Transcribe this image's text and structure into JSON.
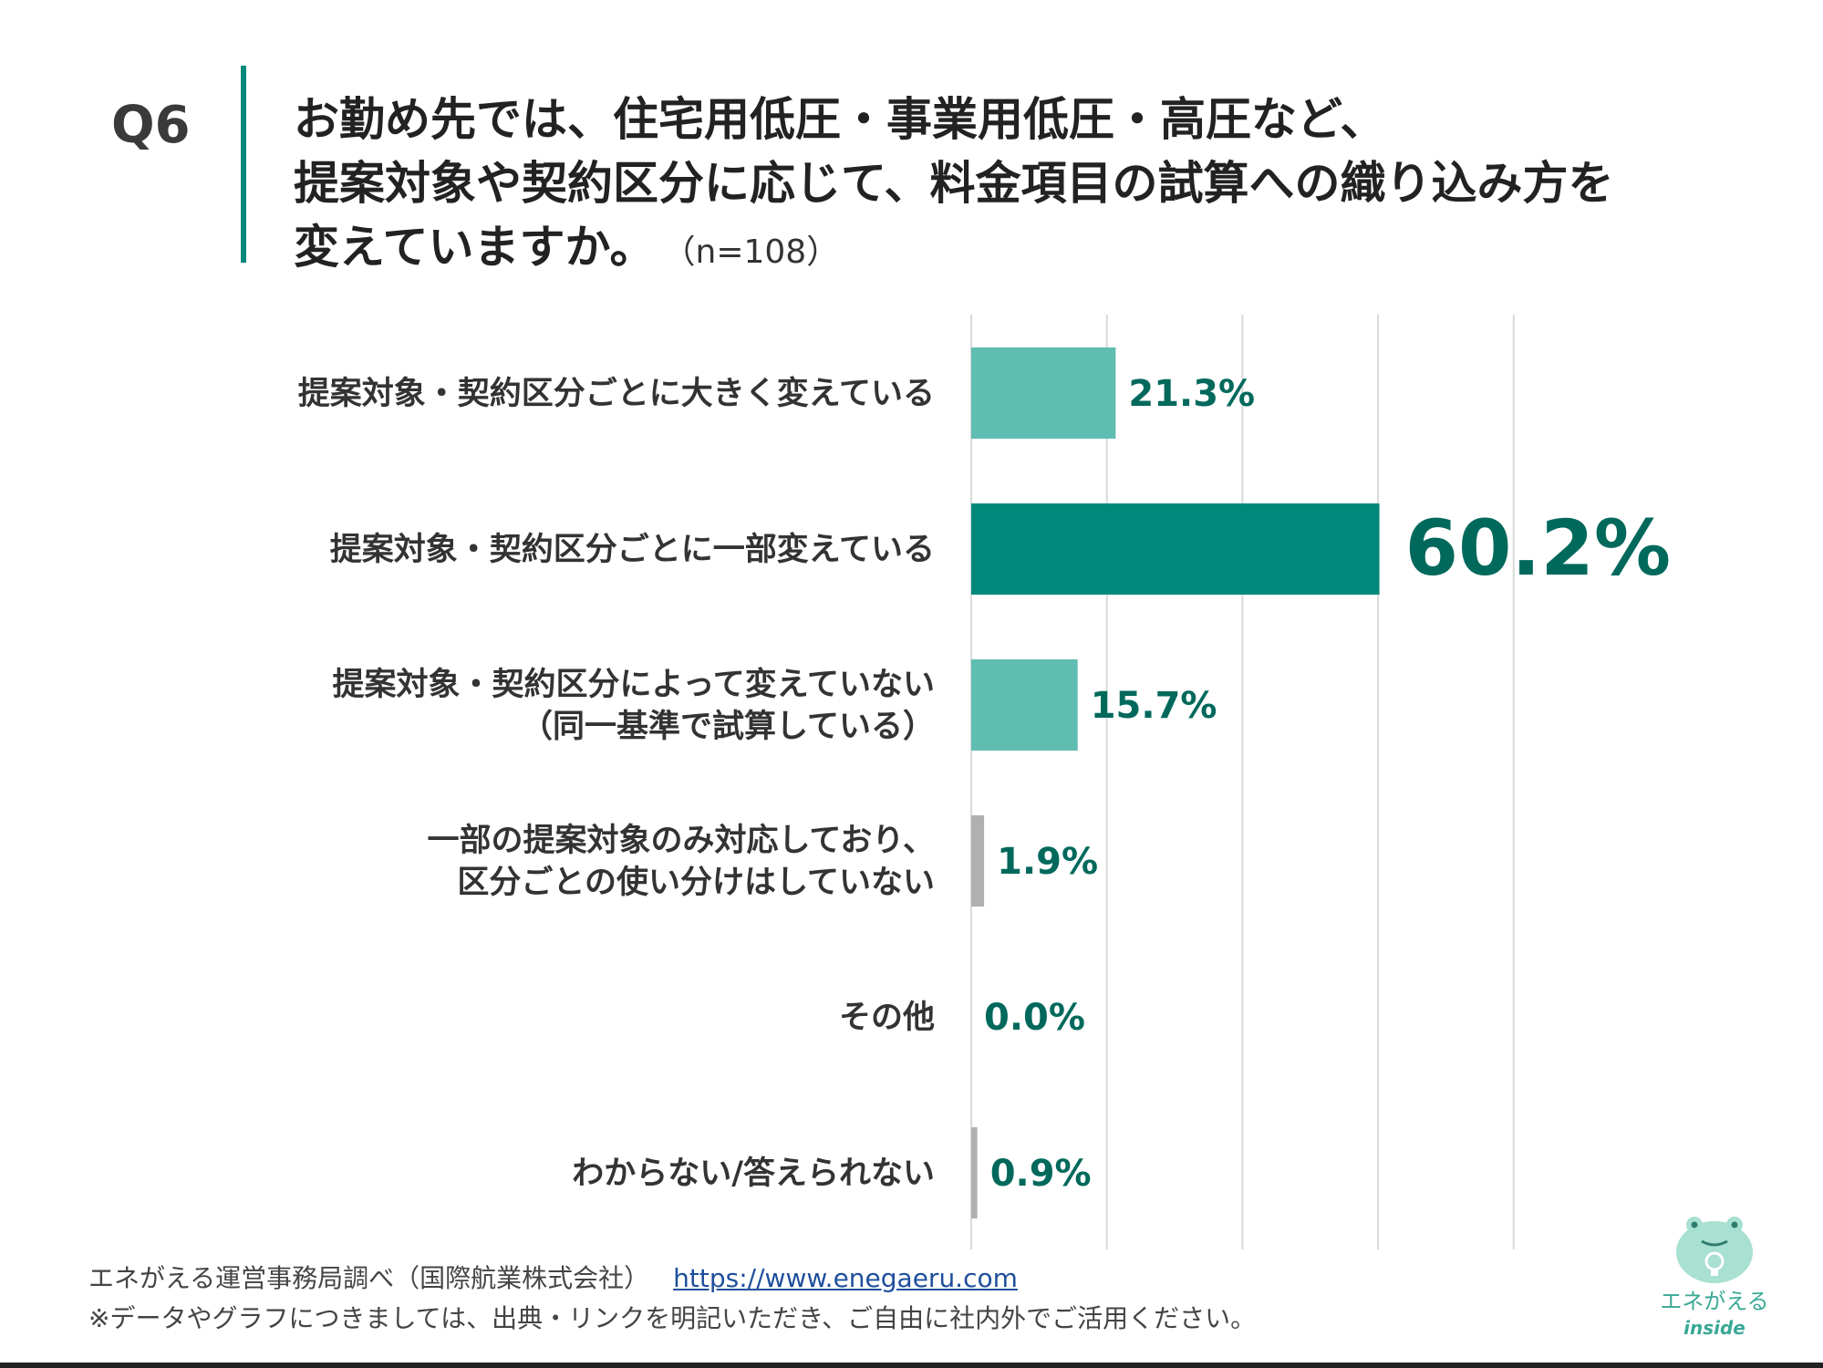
{
  "question": {
    "label": "Q6",
    "lines": [
      "お勤め先では、住宅用低圧・事業用低圧・高圧など、",
      "提案対象や契約区分に応じて、料金項目の試算への織り込み方を",
      "変えていますか。"
    ],
    "sample": "（n=108）"
  },
  "chart_data": {
    "type": "bar",
    "orientation": "horizontal",
    "categories": [
      [
        "提案対象・契約区分ごとに大きく変えている"
      ],
      [
        "提案対象・契約区分ごとに一部変えている"
      ],
      [
        "提案対象・契約区分によって変えていない",
        "（同一基準で試算している）"
      ],
      [
        "一部の提案対象のみ対応しており、",
        "区分ごとの使い分けはしていない"
      ],
      [
        "その他"
      ],
      [
        "わからない/答えられない"
      ]
    ],
    "values": [
      21.3,
      60.2,
      15.7,
      1.9,
      0.0,
      0.9
    ],
    "value_labels": [
      "21.3%",
      "60.2%",
      "15.7%",
      "1.9%",
      "0.0%",
      "0.9%"
    ],
    "xlim": [
      0,
      80
    ],
    "grid": true,
    "colors": {
      "highlight": "#00897b",
      "normal": "#5fbdb2",
      "minor": "#b0b0b0",
      "label": "#00695c",
      "grid": "#d9d9d9"
    }
  },
  "footer": {
    "source": "エネがえる運営事務局調べ（国際航業株式会社）",
    "link": "https://www.enegaeru.com",
    "note": "※データやグラフにつきましては、出典・リンクを明記いただき、ご自由に社内外でご活用ください。"
  },
  "brand": {
    "name": "エネがえる",
    "sub": "inside",
    "icon": "frog-lightbulb-icon"
  }
}
